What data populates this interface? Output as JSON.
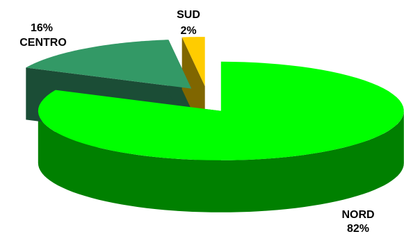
{
  "chart_data": {
    "type": "pie",
    "style": "3d-exploded",
    "title": "",
    "legend": "none",
    "slices": [
      {
        "key": "nord",
        "category": "NORD",
        "value": 82,
        "percent_label": "82%",
        "color": "#00ff00",
        "side_color": "#008000"
      },
      {
        "key": "centro",
        "category": "CENTRO",
        "value": 16,
        "percent_label": "16%",
        "color": "#339966",
        "side_color": "#1b4d36"
      },
      {
        "key": "sud",
        "category": "SUD",
        "value": 2,
        "percent_label": "2%",
        "color": "#ffcc00",
        "side_color": "#806600"
      }
    ]
  }
}
